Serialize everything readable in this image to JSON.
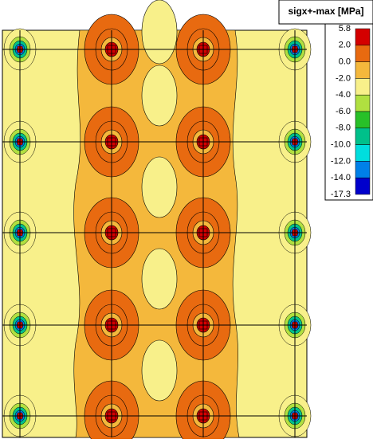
{
  "legend": {
    "title": "sigx+-max [MPa]",
    "levels": [
      "5.8",
      "2.0",
      "0.0",
      "-2.0",
      "-4.0",
      "-6.0",
      "-8.0",
      "-10.0",
      "-12.0",
      "-14.0",
      "-17.3"
    ],
    "colors": [
      "#d40000",
      "#e86a10",
      "#f4b83c",
      "#f8f08a",
      "#b0e040",
      "#28c028",
      "#00c08a",
      "#00dede",
      "#0080e8",
      "#0000cc"
    ]
  }
}
